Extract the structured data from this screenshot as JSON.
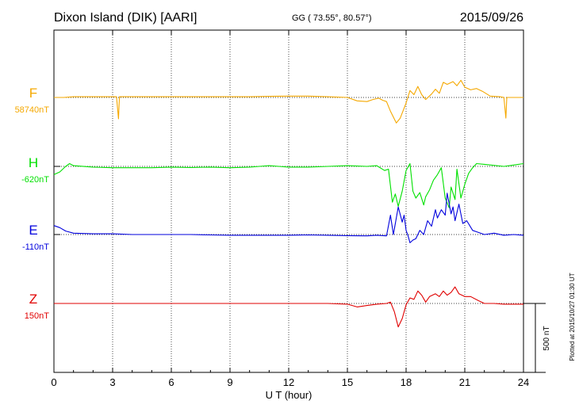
{
  "header": {
    "station": "Dixon Island (DIK)  [AARI]",
    "coords": "GG ( 73.55°,  80.57°)",
    "date": "2015/09/26"
  },
  "footer": {
    "plotted_note": "Plotted at 2015/10/27 01:30 UT"
  },
  "chart_data": {
    "type": "line",
    "xlabel": "U T (hour)",
    "xlim": [
      0,
      24
    ],
    "x_ticks": [
      "0",
      "3",
      "6",
      "9",
      "12",
      "15",
      "18",
      "21",
      "24"
    ],
    "scale_bar": {
      "label": "500 nT",
      "value": 500
    },
    "grid": true,
    "series": [
      {
        "name": "F",
        "baseline_label": "58740nT",
        "color": "#f5a800",
        "points": [
          [
            0,
            0
          ],
          [
            0.5,
            0
          ],
          [
            1,
            5
          ],
          [
            2,
            5
          ],
          [
            3,
            5
          ],
          [
            3.2,
            5
          ],
          [
            3.3,
            -155
          ],
          [
            3.35,
            5
          ],
          [
            4,
            5
          ],
          [
            5,
            5
          ],
          [
            6,
            5
          ],
          [
            7,
            5
          ],
          [
            8,
            5
          ],
          [
            9,
            5
          ],
          [
            10,
            5
          ],
          [
            11,
            8
          ],
          [
            12,
            10
          ],
          [
            13,
            10
          ],
          [
            14,
            5
          ],
          [
            15,
            0
          ],
          [
            15.5,
            -25
          ],
          [
            16,
            -30
          ],
          [
            16.3,
            -15
          ],
          [
            16.6,
            -5
          ],
          [
            16.8,
            -20
          ],
          [
            17,
            -30
          ],
          [
            17.2,
            -100
          ],
          [
            17.5,
            -185
          ],
          [
            17.7,
            -150
          ],
          [
            18,
            -40
          ],
          [
            18.2,
            50
          ],
          [
            18.4,
            20
          ],
          [
            18.6,
            80
          ],
          [
            18.8,
            20
          ],
          [
            19,
            -15
          ],
          [
            19.3,
            25
          ],
          [
            19.5,
            60
          ],
          [
            19.7,
            30
          ],
          [
            19.9,
            110
          ],
          [
            20.1,
            95
          ],
          [
            20.4,
            115
          ],
          [
            20.6,
            85
          ],
          [
            20.8,
            125
          ],
          [
            21,
            75
          ],
          [
            21.3,
            55
          ],
          [
            21.6,
            65
          ],
          [
            21.9,
            45
          ],
          [
            22.3,
            10
          ],
          [
            22.8,
            5
          ],
          [
            23,
            0
          ],
          [
            23.1,
            -150
          ],
          [
            23.15,
            0
          ],
          [
            24,
            0
          ]
        ]
      },
      {
        "name": "H",
        "baseline_label": "-620nT",
        "color": "#00e000",
        "points": [
          [
            0,
            -60
          ],
          [
            0.3,
            -40
          ],
          [
            0.6,
            0
          ],
          [
            0.8,
            20
          ],
          [
            1,
            5
          ],
          [
            2,
            -5
          ],
          [
            3,
            -10
          ],
          [
            4,
            -10
          ],
          [
            5,
            -10
          ],
          [
            6,
            -5
          ],
          [
            7,
            -8
          ],
          [
            8,
            -5
          ],
          [
            9,
            -10
          ],
          [
            10,
            -5
          ],
          [
            10.5,
            0
          ],
          [
            11,
            5
          ],
          [
            11.5,
            0
          ],
          [
            12,
            -5
          ],
          [
            13,
            -5
          ],
          [
            14,
            0
          ],
          [
            15,
            5
          ],
          [
            16,
            0
          ],
          [
            16.5,
            5
          ],
          [
            16.9,
            -30
          ],
          [
            17.1,
            -20
          ],
          [
            17.3,
            -260
          ],
          [
            17.45,
            -200
          ],
          [
            17.6,
            -290
          ],
          [
            17.8,
            -180
          ],
          [
            18,
            -30
          ],
          [
            18.2,
            20
          ],
          [
            18.35,
            -180
          ],
          [
            18.5,
            -230
          ],
          [
            18.7,
            -190
          ],
          [
            18.9,
            -280
          ],
          [
            19,
            -220
          ],
          [
            19.2,
            -170
          ],
          [
            19.4,
            -100
          ],
          [
            19.6,
            -60
          ],
          [
            19.8,
            -10
          ],
          [
            20,
            -230
          ],
          [
            20.2,
            -300
          ],
          [
            20.3,
            -150
          ],
          [
            20.5,
            -240
          ],
          [
            20.6,
            -20
          ],
          [
            20.8,
            -230
          ],
          [
            21,
            -130
          ],
          [
            21.2,
            -50
          ],
          [
            21.4,
            -10
          ],
          [
            21.6,
            20
          ],
          [
            22,
            15
          ],
          [
            23,
            0
          ],
          [
            23.5,
            10
          ],
          [
            24,
            20
          ]
        ]
      },
      {
        "name": "E",
        "baseline_label": "-110nT",
        "color": "#0000dd",
        "points": [
          [
            0,
            65
          ],
          [
            0.3,
            50
          ],
          [
            0.6,
            25
          ],
          [
            1,
            10
          ],
          [
            2,
            5
          ],
          [
            3,
            5
          ],
          [
            4,
            0
          ],
          [
            5,
            0
          ],
          [
            6,
            0
          ],
          [
            7,
            0
          ],
          [
            8,
            -3
          ],
          [
            9,
            -5
          ],
          [
            10,
            -5
          ],
          [
            11,
            -5
          ],
          [
            12,
            -5
          ],
          [
            13,
            -3
          ],
          [
            14,
            -5
          ],
          [
            15,
            -8
          ],
          [
            16,
            -10
          ],
          [
            16.5,
            -5
          ],
          [
            17,
            -10
          ],
          [
            17.2,
            140
          ],
          [
            17.35,
            0
          ],
          [
            17.6,
            200
          ],
          [
            17.8,
            90
          ],
          [
            17.9,
            140
          ],
          [
            18,
            30
          ],
          [
            18.1,
            -10
          ],
          [
            18.2,
            -60
          ],
          [
            18.35,
            -40
          ],
          [
            18.5,
            -30
          ],
          [
            18.7,
            30
          ],
          [
            18.9,
            0
          ],
          [
            19.1,
            100
          ],
          [
            19.3,
            60
          ],
          [
            19.5,
            180
          ],
          [
            19.6,
            120
          ],
          [
            19.8,
            180
          ],
          [
            20,
            140
          ],
          [
            20.1,
            300
          ],
          [
            20.3,
            150
          ],
          [
            20.4,
            200
          ],
          [
            20.5,
            100
          ],
          [
            20.7,
            220
          ],
          [
            20.9,
            80
          ],
          [
            21.1,
            100
          ],
          [
            21.4,
            30
          ],
          [
            21.6,
            20
          ],
          [
            22,
            0
          ],
          [
            22.5,
            10
          ],
          [
            23,
            -5
          ],
          [
            23.5,
            0
          ],
          [
            24,
            -5
          ]
        ]
      },
      {
        "name": "Z",
        "baseline_label": "150nT",
        "color": "#e00000",
        "points": [
          [
            0,
            0
          ],
          [
            1,
            0
          ],
          [
            2,
            0
          ],
          [
            3,
            0
          ],
          [
            4,
            0
          ],
          [
            5,
            0
          ],
          [
            6,
            0
          ],
          [
            7,
            0
          ],
          [
            8,
            0
          ],
          [
            9,
            0
          ],
          [
            10,
            0
          ],
          [
            11,
            0
          ],
          [
            12,
            0
          ],
          [
            13,
            0
          ],
          [
            14,
            0
          ],
          [
            15,
            -5
          ],
          [
            15.5,
            -25
          ],
          [
            16,
            -15
          ],
          [
            16.5,
            -5
          ],
          [
            17,
            0
          ],
          [
            17.2,
            10
          ],
          [
            17.4,
            -60
          ],
          [
            17.6,
            -170
          ],
          [
            17.8,
            -110
          ],
          [
            18,
            -10
          ],
          [
            18.2,
            40
          ],
          [
            18.4,
            30
          ],
          [
            18.6,
            90
          ],
          [
            18.8,
            60
          ],
          [
            19,
            10
          ],
          [
            19.2,
            50
          ],
          [
            19.5,
            70
          ],
          [
            19.7,
            50
          ],
          [
            19.9,
            90
          ],
          [
            20.1,
            60
          ],
          [
            20.3,
            80
          ],
          [
            20.5,
            120
          ],
          [
            20.7,
            70
          ],
          [
            21,
            50
          ],
          [
            21.3,
            50
          ],
          [
            21.7,
            20
          ],
          [
            22,
            0
          ],
          [
            22.5,
            0
          ],
          [
            23,
            -5
          ],
          [
            24,
            -5
          ]
        ]
      }
    ]
  }
}
